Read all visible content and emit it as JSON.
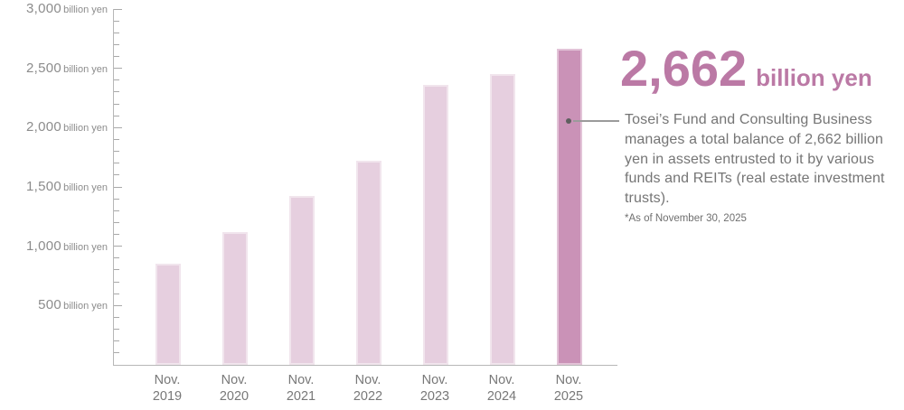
{
  "chart_data": {
    "type": "bar",
    "title": "",
    "categories": [
      [
        "Nov.",
        "2019"
      ],
      [
        "Nov.",
        "2020"
      ],
      [
        "Nov.",
        "2021"
      ],
      [
        "Nov.",
        "2022"
      ],
      [
        "Nov.",
        "2023"
      ],
      [
        "Nov.",
        "2024"
      ],
      [
        "Nov.",
        "2025"
      ]
    ],
    "values": [
      850,
      1120,
      1425,
      1720,
      2360,
      2450,
      2662
    ],
    "highlight_index": 6,
    "unit_label": "billion yen",
    "ylim": [
      0,
      3000
    ],
    "ytick_minor_step": 100,
    "ytick_major_step": 500,
    "grid": false,
    "legend": "none",
    "colors": {
      "bar": "#e6cfdf",
      "bar_highlight": "#ca92b7"
    }
  },
  "annotation": {
    "value": "2,662",
    "unit": "billion yen",
    "description": "Tosei’s Fund and Consulting Business manages a total balance of 2,662 billion yen in assets entrusted to it by various funds and REITs (real estate investment trusts).",
    "footnote": "*As of November 30, 2025",
    "accent_color": "#bb79a5"
  }
}
